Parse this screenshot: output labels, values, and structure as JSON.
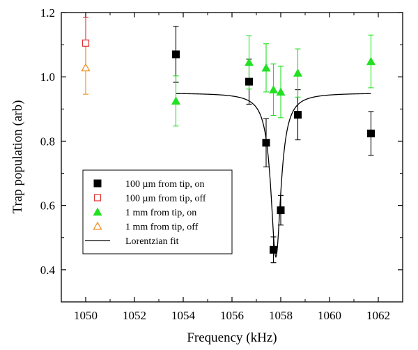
{
  "chart_data": {
    "type": "scatter",
    "title": "",
    "xlabel": "Frequency (kHz)",
    "ylabel": "Trap population (arb)",
    "xlim": [
      1049.0,
      1063.0
    ],
    "ylim": [
      0.3,
      1.2
    ],
    "xticks": [
      1050,
      1052,
      1054,
      1056,
      1058,
      1060,
      1062
    ],
    "yticks": [
      0.4,
      0.6,
      0.8,
      1.0,
      1.2
    ],
    "xtick_labels": [
      "1050",
      "1052",
      "1054",
      "1056",
      "1058",
      "1060",
      "1062"
    ],
    "ytick_labels": [
      "0.4",
      "0.6",
      "0.8",
      "1.0",
      "1.2"
    ],
    "grid": false,
    "legend_position": "bottom-left",
    "series": [
      {
        "name": "100 µm from tip, on",
        "marker": "filled-square",
        "color": "#000000",
        "points": [
          {
            "x": 1053.7,
            "y": 1.07,
            "err": 0.087
          },
          {
            "x": 1056.7,
            "y": 0.985,
            "err": 0.07
          },
          {
            "x": 1057.4,
            "y": 0.795,
            "err": 0.075
          },
          {
            "x": 1057.7,
            "y": 0.462,
            "err": 0.04
          },
          {
            "x": 1058.0,
            "y": 0.585,
            "err": 0.046
          },
          {
            "x": 1058.7,
            "y": 0.882,
            "err": 0.078
          },
          {
            "x": 1061.7,
            "y": 0.824,
            "err": 0.068
          }
        ]
      },
      {
        "name": "100 µm from tip, off",
        "marker": "open-square",
        "color": "#e03030",
        "points": [
          {
            "x": 1050.0,
            "y": 1.105,
            "err": 0.08
          }
        ]
      },
      {
        "name": "1 mm from tip, on",
        "marker": "filled-triangle",
        "color": "#22e022",
        "points": [
          {
            "x": 1053.7,
            "y": 0.925,
            "err": 0.078
          },
          {
            "x": 1056.7,
            "y": 1.045,
            "err": 0.083
          },
          {
            "x": 1057.4,
            "y": 1.028,
            "err": 0.075
          },
          {
            "x": 1057.7,
            "y": 0.96,
            "err": 0.08
          },
          {
            "x": 1058.0,
            "y": 0.953,
            "err": 0.08
          },
          {
            "x": 1058.7,
            "y": 1.012,
            "err": 0.075
          },
          {
            "x": 1061.7,
            "y": 1.048,
            "err": 0.082
          }
        ]
      },
      {
        "name": "1 mm from tip, off",
        "marker": "open-triangle",
        "color": "#f08a1c",
        "points": [
          {
            "x": 1050.0,
            "y": 1.028,
            "err": 0.082
          }
        ]
      },
      {
        "name": "Lorentzian fit",
        "type": "line",
        "color": "#000000",
        "fit": {
          "x_start": 1053.7,
          "x_end": 1061.7,
          "baseline": 0.95,
          "depth": 0.51,
          "center": 1057.8,
          "hwhm": 0.25
        }
      }
    ]
  }
}
